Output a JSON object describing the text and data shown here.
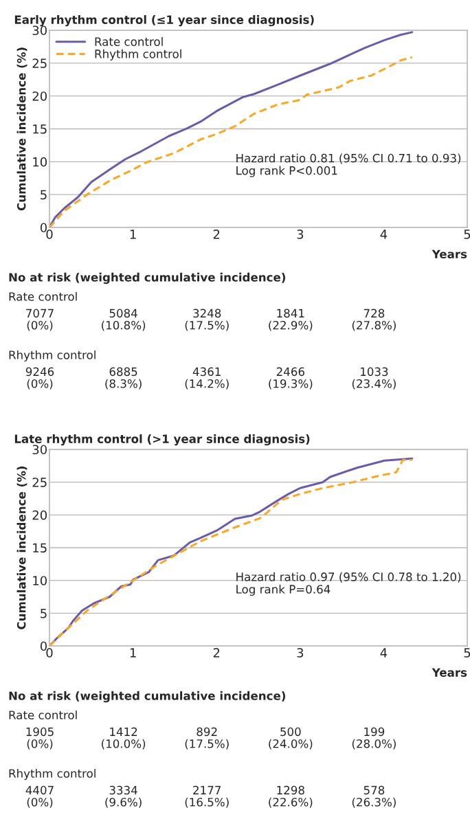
{
  "chart_data": [
    {
      "type": "line",
      "title": "Early rhythm control (≤1 year since diagnosis)",
      "xlabel": "Years",
      "ylabel": "Cumulative incidence (%)",
      "xlim": [
        0,
        5
      ],
      "xticks": [
        0,
        1,
        2,
        3,
        4,
        5
      ],
      "ylim": [
        0,
        30
      ],
      "yticks": [
        0,
        5,
        10,
        15,
        20,
        25,
        30
      ],
      "grid": "y",
      "legend": "top left",
      "marker": "none",
      "series": [
        {
          "name": "Rate control",
          "color": "#6b5ba8",
          "line_style": "solid",
          "x": [
            0,
            0.066,
            0.175,
            0.34,
            0.5,
            0.72,
            0.91,
            1.1,
            1.43,
            1.65,
            1.81,
            2.0,
            2.31,
            2.45,
            2.73,
            3.0,
            3.36,
            3.77,
            4.01,
            4.2,
            4.34
          ],
          "values": [
            0,
            1.5,
            2.9,
            4.6,
            6.9,
            8.8,
            10.4,
            11.6,
            13.9,
            15.1,
            16.1,
            17.7,
            19.8,
            20.3,
            21.7,
            23.1,
            24.9,
            27.3,
            28.5,
            29.3,
            29.7
          ]
        },
        {
          "name": "Rhythm control",
          "color": "#f9a825",
          "line_style": "dashed",
          "x": [
            0,
            0.175,
            0.45,
            0.72,
            1.0,
            1.16,
            1.49,
            1.81,
            2.0,
            2.22,
            2.45,
            2.73,
            3.0,
            3.08,
            3.46,
            3.6,
            3.85,
            4.1,
            4.2,
            4.34
          ],
          "values": [
            0,
            2.5,
            5.0,
            7.1,
            8.8,
            9.9,
            11.3,
            13.4,
            14.2,
            15.4,
            17.3,
            18.7,
            19.4,
            20.2,
            21.3,
            22.3,
            23.1,
            24.7,
            25.4,
            25.9
          ]
        }
      ],
      "annotations": [
        "Hazard ratio 0.81 (95% CI 0.71 to 0.93)",
        "Log rank P<0.001",
        "No at risk (weighted cumulative incidence)",
        "Rate control",
        "7077\n(0%)",
        "5084\n(10.8%)",
        "3248\n(17.5%)",
        "1841\n(22.9%)",
        "728\n(27.8%)",
        "Rhythm control",
        "9246\n(0%)",
        "6885\n(8.3%)",
        "4361\n(14.2%)",
        "2466\n(19.3%)",
        "1033\n(23.4%)"
      ]
    },
    {
      "type": "line",
      "title": "Late rhythm control (>1 year since diagnosis)",
      "xlabel": "Years",
      "ylabel": "Cumulative incidence (%)",
      "xlim": [
        0,
        5
      ],
      "xticks": [
        0,
        1,
        2,
        3,
        4,
        5
      ],
      "ylim": [
        0,
        30
      ],
      "yticks": [
        0,
        5,
        10,
        15,
        20,
        25,
        30
      ],
      "grid": "y",
      "marker": "none",
      "series": [
        {
          "color": "#6b5ba8",
          "line_style": "solid",
          "x": [
            0,
            0.09,
            0.23,
            0.28,
            0.39,
            0.53,
            0.72,
            0.86,
            0.97,
            1.0,
            1.19,
            1.3,
            1.49,
            1.68,
            1.81,
            2.0,
            2.22,
            2.42,
            2.52,
            2.73,
            2.86,
            3.0,
            3.27,
            3.36,
            3.68,
            4.01,
            4.34
          ],
          "values": [
            0,
            1.2,
            2.8,
            3.8,
            5.4,
            6.5,
            7.5,
            9.1,
            9.4,
            10.1,
            11.3,
            13.1,
            13.8,
            15.8,
            16.5,
            17.6,
            19.4,
            19.9,
            20.5,
            22.2,
            23.2,
            24.1,
            25.0,
            25.8,
            27.2,
            28.3,
            28.6
          ]
        },
        {
          "color": "#f9a825",
          "line_style": "dashed",
          "x": [
            0,
            0.23,
            0.45,
            0.72,
            1.0,
            1.27,
            1.54,
            1.81,
            2.22,
            2.52,
            2.59,
            2.78,
            3.0,
            3.27,
            3.63,
            3.95,
            4.15,
            4.23,
            4.34
          ],
          "values": [
            0,
            2.8,
            5.4,
            7.7,
            10.0,
            12.2,
            14.1,
            16.0,
            18.1,
            19.5,
            20.2,
            22.3,
            23.2,
            24.1,
            25.0,
            26.0,
            26.5,
            28.4,
            28.4
          ]
        }
      ],
      "annotations": [
        "Hazard ratio 0.97 (95% CI 0.78 to 1.20)",
        "Log rank P=0.64",
        "No at risk (weighted cumulative incidence)",
        "Rate control",
        "1905\n(0%)",
        "1412\n(10.0%)",
        "892\n(17.5%)",
        "500\n(24.0%)",
        "199\n(28.0%)",
        "Rhythm control",
        "4407\n(0%)",
        "3334\n(9.6%)",
        "2177\n(16.5%)",
        "1298\n(22.6%)",
        "578\n(26.3%)"
      ]
    }
  ]
}
